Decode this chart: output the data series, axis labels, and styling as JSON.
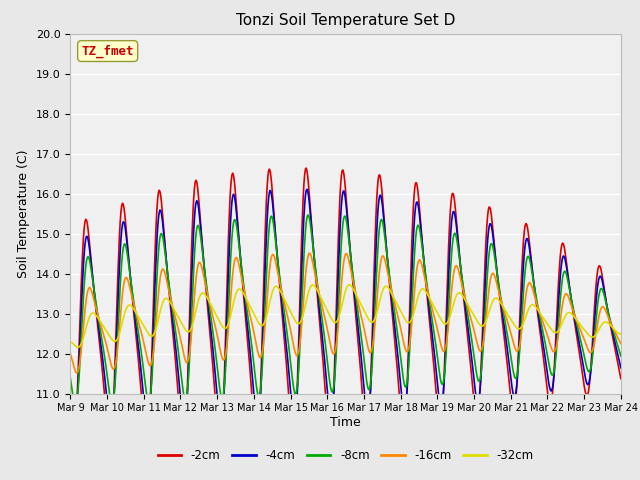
{
  "title": "Tonzi Soil Temperature Set D",
  "xlabel": "Time",
  "ylabel": "Soil Temperature (C)",
  "ylim": [
    11.0,
    20.0
  ],
  "yticks": [
    11.0,
    12.0,
    13.0,
    14.0,
    15.0,
    16.0,
    17.0,
    18.0,
    19.0,
    20.0
  ],
  "xtick_labels": [
    "Mar 9",
    "Mar 10",
    "Mar 11",
    "Mar 12",
    "Mar 13",
    "Mar 14",
    "Mar 15",
    "Mar 16",
    "Mar 17",
    "Mar 18",
    "Mar 19",
    "Mar 20",
    "Mar 21",
    "Mar 22",
    "Mar 23",
    "Mar 24"
  ],
  "annotation_text": "TZ_fmet",
  "annotation_color": "#CC0000",
  "annotation_bg": "#FFFFCC",
  "lines": {
    "-2cm": {
      "color": "#DD0000",
      "lw": 1.2
    },
    "-4cm": {
      "color": "#0000CC",
      "lw": 1.2
    },
    "-8cm": {
      "color": "#00AA00",
      "lw": 1.2
    },
    "-16cm": {
      "color": "#FF8800",
      "lw": 1.2
    },
    "-32cm": {
      "color": "#DDDD00",
      "lw": 1.2
    }
  },
  "legend_labels": [
    "-2cm",
    "-4cm",
    "-8cm",
    "-16cm",
    "-32cm"
  ],
  "legend_colors": [
    "#DD0000",
    "#0000CC",
    "#00AA00",
    "#FF8800",
    "#DDDD00"
  ],
  "bg_color": "#E8E8E8",
  "plot_bg": "#F0F0F0"
}
